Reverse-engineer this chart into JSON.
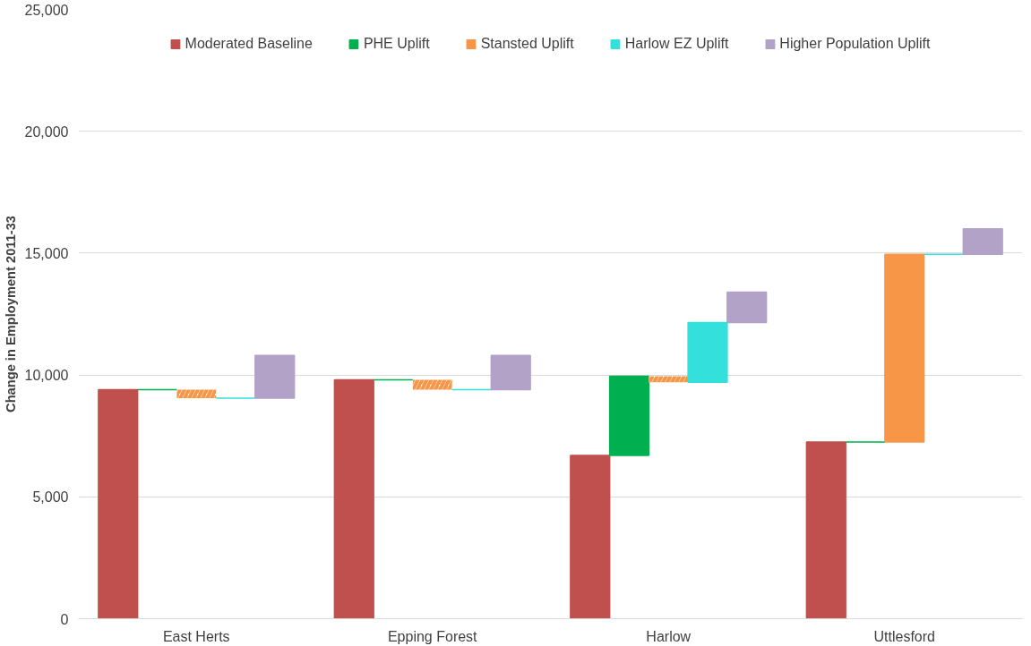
{
  "chart_data": {
    "type": "bar",
    "ylabel": "Change in Employment 2011-33",
    "categories": [
      "East Herts",
      "Epping Forest",
      "Harlow",
      "Uttlesford"
    ],
    "series": [
      {
        "name": "Moderated Baseline",
        "color": "#c0504d",
        "values": [
          9400,
          9800,
          6700,
          7250
        ],
        "base": [
          0,
          0,
          0,
          0
        ]
      },
      {
        "name": "PHE Uplift",
        "color": "#00b050",
        "values": [
          0,
          0,
          3250,
          0
        ],
        "base": [
          9400,
          9800,
          6700,
          7250
        ]
      },
      {
        "name": "Stansted Uplift",
        "color": "#f79646",
        "values": [
          -350,
          -400,
          -250,
          7700
        ],
        "base": [
          9400,
          9800,
          9950,
          7250
        ]
      },
      {
        "name": "Harlow EZ Uplift",
        "color": "#33e0db",
        "values": [
          0,
          0,
          2450,
          0
        ],
        "base": [
          9050,
          9400,
          9700,
          14950
        ]
      },
      {
        "name": "Higher Population Uplift",
        "color": "#b2a2c7",
        "values": [
          1750,
          1400,
          1250,
          1050
        ],
        "base": [
          9050,
          9400,
          12150,
          14950
        ]
      }
    ],
    "ylim": [
      0,
      25000
    ],
    "yticks": [
      0,
      {
        "value": 5000,
        "label": "5,000"
      },
      {
        "value": 10000,
        "label": "10,000"
      },
      {
        "value": 15000,
        "label": "15,000"
      },
      {
        "value": 20000,
        "label": "20,000"
      },
      {
        "value": 25000,
        "label": "25,000"
      }
    ],
    "grid": "y",
    "legend": "top"
  }
}
